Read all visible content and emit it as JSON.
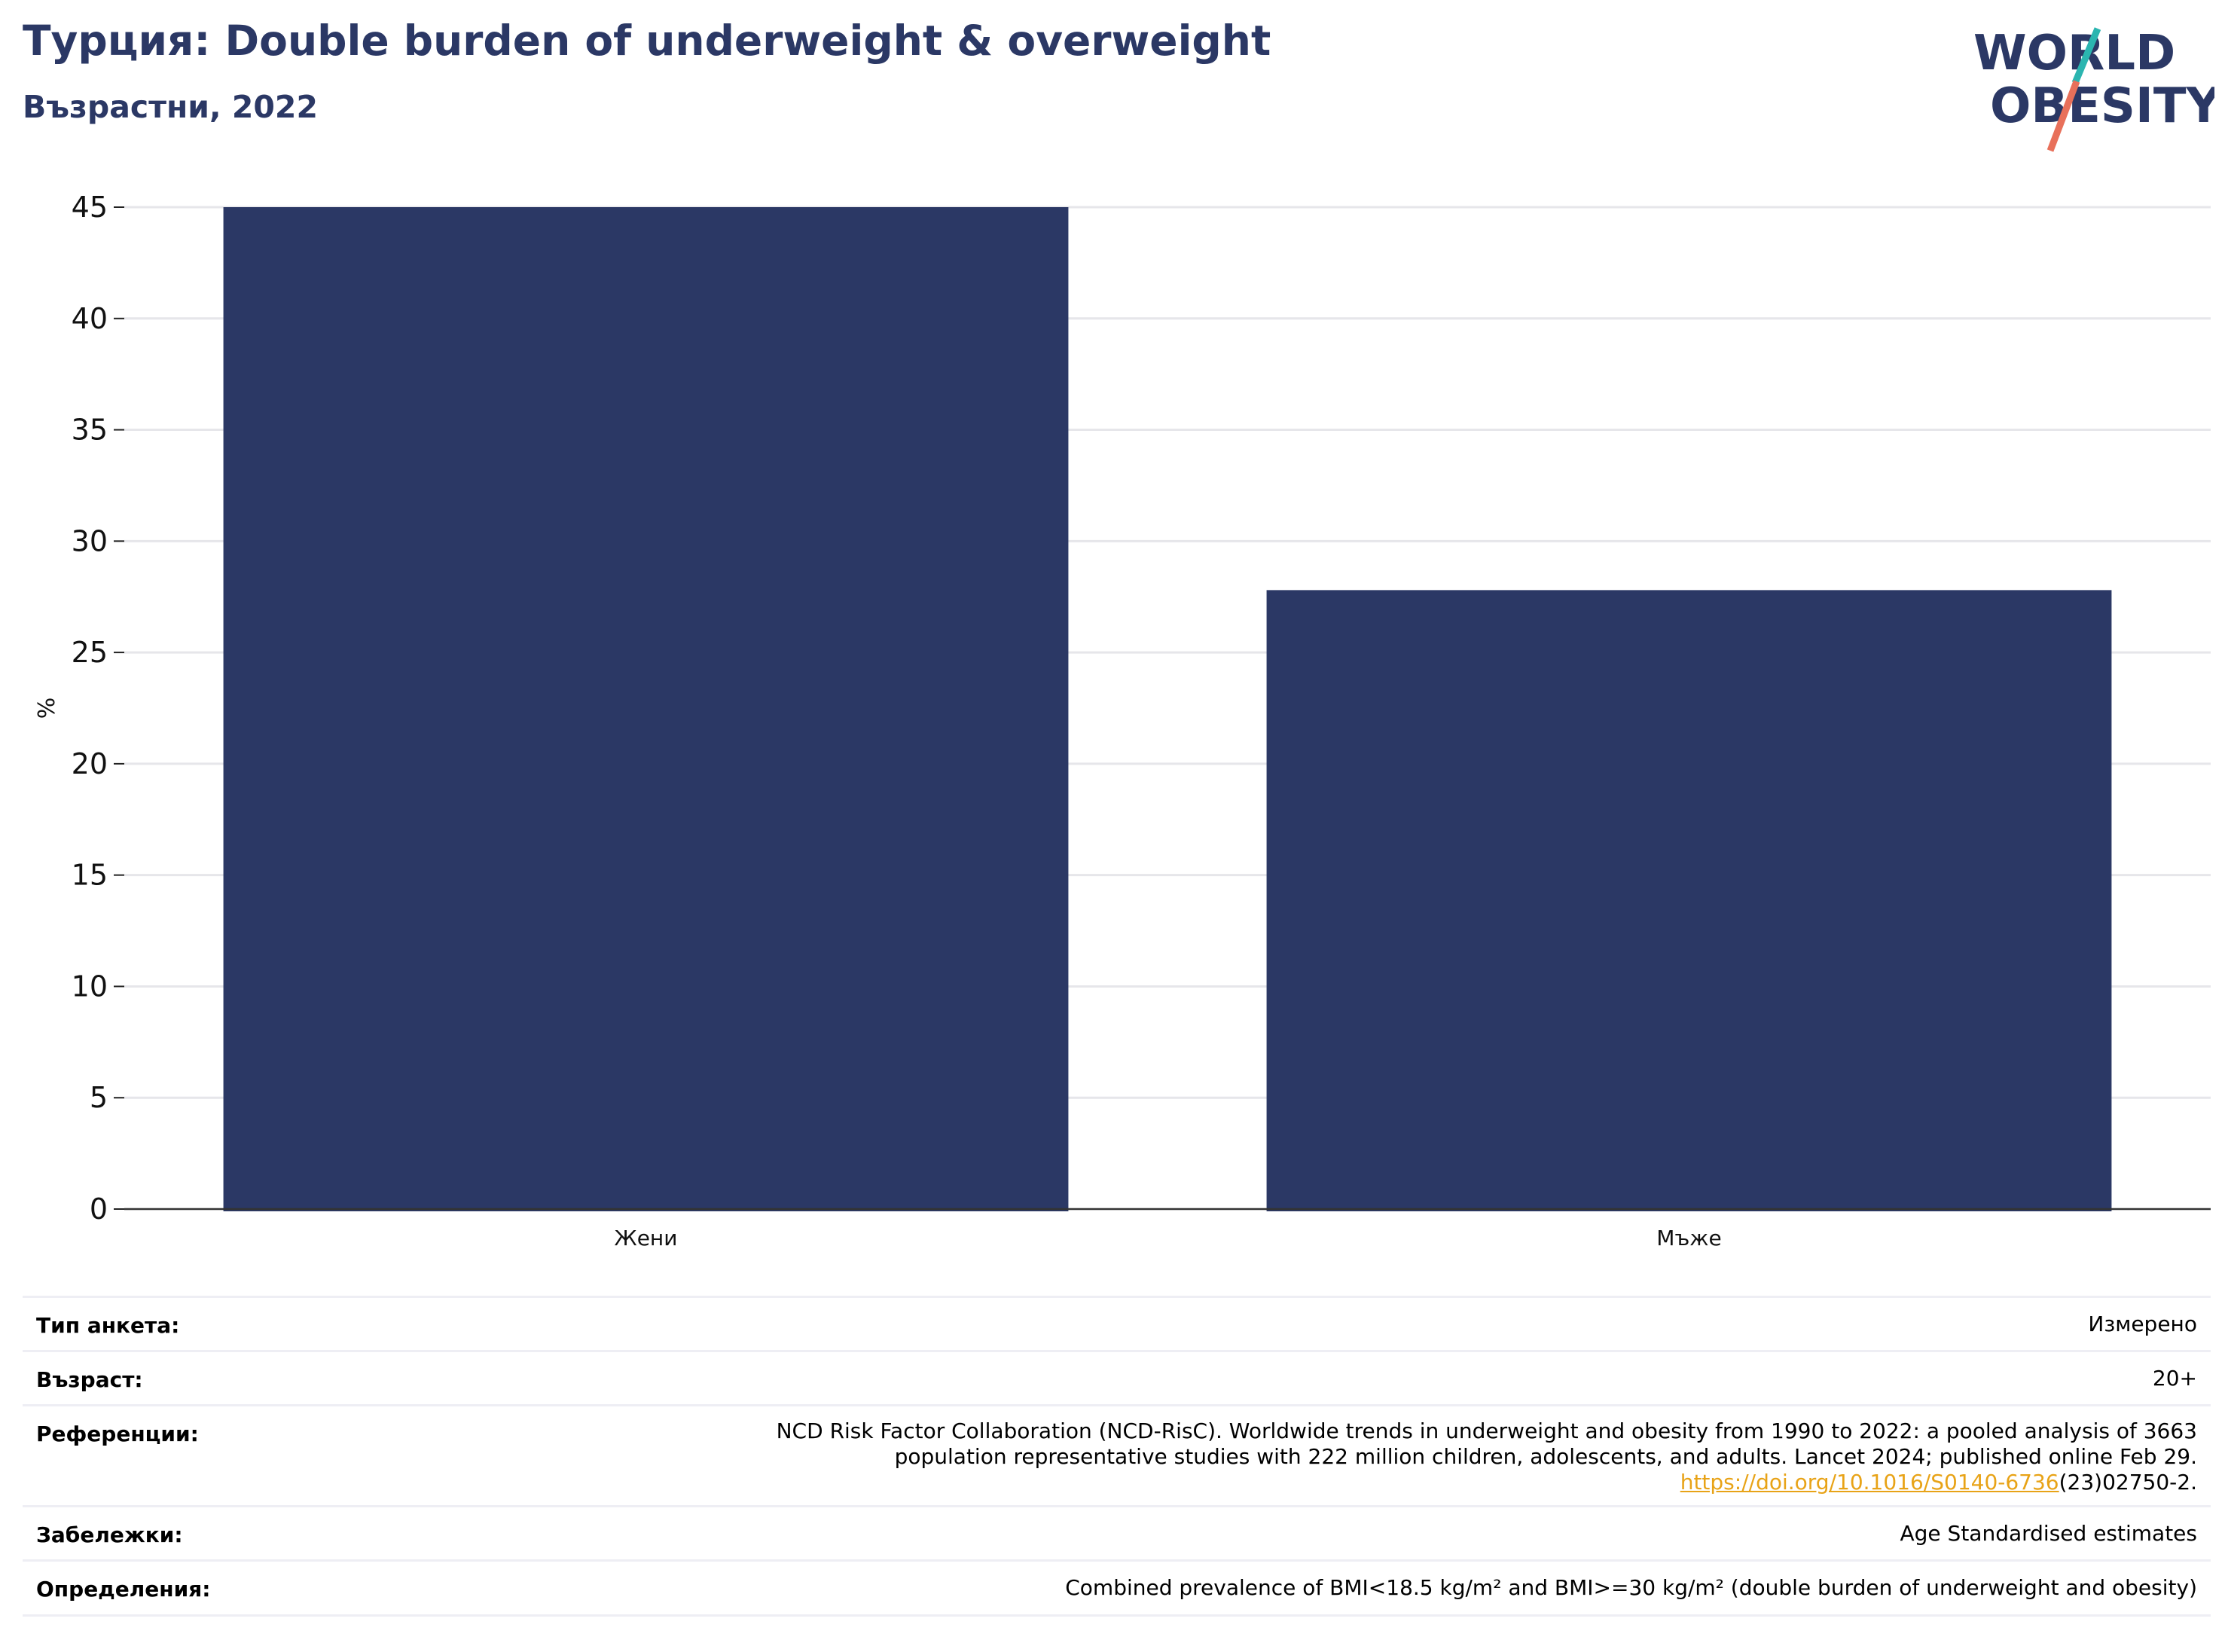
{
  "header": {
    "title": "Турция: Double burden of underweight & overweight",
    "subtitle": "Възрастни, 2022"
  },
  "logo": {
    "line1": "WORLD",
    "line2": "OBESITY",
    "colors": {
      "text": "#2b3865",
      "slash_top": "#2bb5b0",
      "slash_bottom": "#e8705a"
    }
  },
  "chart_data": {
    "type": "bar",
    "categories": [
      "Жени",
      "Мъже"
    ],
    "values": [
      45.0,
      27.8
    ],
    "title": "Турция: Double burden of underweight & overweight",
    "subtitle": "Възрастни, 2022",
    "xlabel": "",
    "ylabel": "%",
    "ylim": [
      0,
      45
    ],
    "yticks": [
      0,
      5,
      10,
      15,
      20,
      25,
      30,
      35,
      40,
      45
    ],
    "grid": true,
    "legend": "none",
    "bar_color": "#2b3865"
  },
  "meta": {
    "rows": [
      {
        "label": "Тип анкета:",
        "value": "Измерено"
      },
      {
        "label": "Възраст:",
        "value": "20+"
      },
      {
        "label": "Референции:",
        "value_line1": "NCD Risk Factor Collaboration (NCD-RisC). Worldwide trends in underweight and obesity from 1990 to 2022: a pooled analysis of 3663",
        "value_line2": "population representative studies with 222 million children, adolescents, and adults. Lancet 2024; published online Feb 29.",
        "link": "https://doi.org/10.1016/S0140-6736",
        "link_suffix": "(23)02750-2."
      },
      {
        "label": "Забележки:",
        "value": "Age Standardised estimates"
      },
      {
        "label": "Определения:",
        "value": "Combined prevalence of BMI<18.5 kg/m² and BMI>=30 kg/m² (double burden of underweight and obesity)"
      }
    ]
  }
}
